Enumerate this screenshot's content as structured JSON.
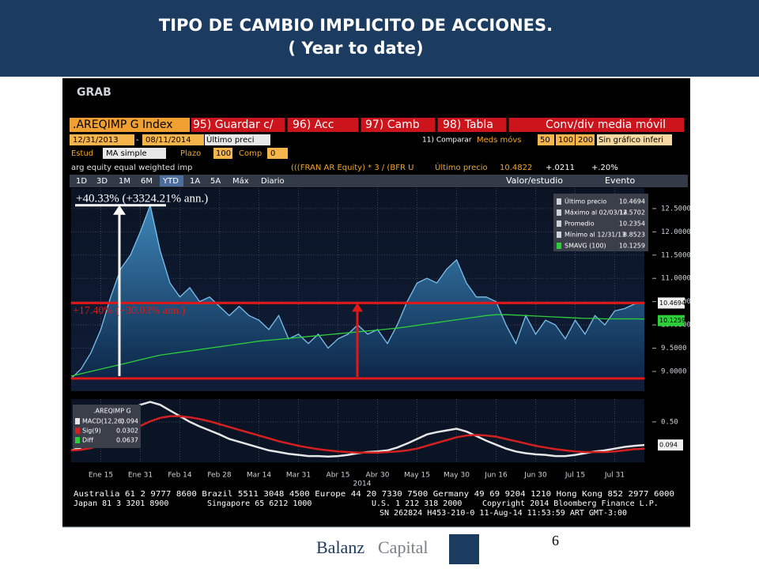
{
  "header": {
    "title_line1": "TIPO DE CAMBIO IMPLICITO DE ACCIONES.",
    "title_line2": "( Year to date)"
  },
  "terminal": {
    "screen": "GRAB",
    "ticker": ".AREQIMP G Index",
    "menu": [
      "95) Guardar c/",
      "96) Acc",
      "97) Camb",
      "98) Tabla",
      "Conv/div media móvil"
    ],
    "date_from": "12/31/2013",
    "date_sep": "-",
    "date_to": "08/11/2014",
    "price_field": "Último preci",
    "compare": "11) Comparar",
    "moving_avgs": "Meds móvs",
    "ma_periods": [
      "50",
      "100",
      "200"
    ],
    "lower_chart": "Sin gráfico inferi",
    "study_label": "Estud",
    "study": "MA simple",
    "period_label": "Plazo",
    "period": "100",
    "comp_label": "Comp",
    "comp": "0",
    "description": "arg equity equal weighted imp",
    "formula": "(((FRAN AR Equity) * 3 / (BFR U",
    "last_label": "Último precio",
    "last_value": "10.4822",
    "change": "+.0211",
    "change_pct": "+.20%",
    "period_buttons": [
      "1D",
      "3D",
      "1M",
      "6M",
      "YTD",
      "1A",
      "5A",
      "Máx",
      "Diario"
    ],
    "value_study": "Valor/estudio",
    "event": "Evento",
    "footer_lines": [
      "Australia 61 2 9777 8600 Brazil 5511 3048 4500 Europe 44 20 7330 7500 Germany 49 69 9204 1210 Hong Kong 852 2977 6000",
      "Japan 81 3 3201 8900",
      "Singapore 65 6212 1000",
      "U.S. 1 212 318 2000",
      "Copyright 2014 Bloomberg Finance L.P.",
      "SN 262824 H453-210-0 11-Aug-14 11:53:59 ART  GMT-3:00"
    ]
  },
  "chart_data": [
    {
      "type": "area",
      "series": [
        {
          "color": "#7cc0ec",
          "fill": true,
          "values": [
            8.85,
            9.05,
            9.4,
            9.9,
            10.6,
            11.2,
            11.5,
            12.0,
            12.57,
            11.6,
            10.9,
            10.6,
            10.8,
            10.5,
            10.6,
            10.4,
            10.2,
            10.4,
            10.2,
            10.1,
            9.9,
            10.2,
            9.7,
            9.8,
            9.6,
            9.8,
            9.5,
            9.7,
            9.8,
            10.0,
            9.8,
            9.9,
            9.6,
            10.0,
            10.5,
            10.9,
            11.0,
            10.9,
            11.2,
            11.4,
            10.9,
            10.6,
            10.6,
            10.5,
            10.0,
            9.6,
            10.2,
            9.8,
            10.1,
            10.0,
            9.7,
            10.1,
            9.8,
            10.2,
            10.0,
            10.3,
            10.35,
            10.45,
            10.47
          ]
        },
        {
          "color": "#2ccf3a",
          "fill": false,
          "values": [
            8.9,
            8.95,
            9.0,
            9.05,
            9.1,
            9.15,
            9.2,
            9.25,
            9.3,
            9.35,
            9.38,
            9.41,
            9.44,
            9.47,
            9.5,
            9.53,
            9.56,
            9.59,
            9.62,
            9.65,
            9.67,
            9.69,
            9.71,
            9.73,
            9.75,
            9.77,
            9.79,
            9.81,
            9.83,
            9.85,
            9.87,
            9.89,
            9.91,
            9.93,
            9.96,
            9.99,
            10.02,
            10.05,
            10.08,
            10.11,
            10.14,
            10.17,
            10.2,
            10.22,
            10.22,
            10.21,
            10.2,
            10.19,
            10.18,
            10.17,
            10.16,
            10.15,
            10.14,
            10.14,
            10.13,
            10.13,
            10.13,
            10.13,
            10.126
          ]
        }
      ],
      "ylim": [
        8.83,
        12.94
      ],
      "yticks": [
        {
          "value": 9,
          "label": "9.0000"
        },
        {
          "value": 9.5,
          "label": "9.5000"
        },
        {
          "value": 10,
          "label": "10.0000"
        },
        {
          "value": 10.5,
          "label": "10.5000"
        },
        {
          "value": 11,
          "label": "11.0000"
        },
        {
          "value": 11.5,
          "label": "11.5000"
        },
        {
          "value": 12,
          "label": "12.0000"
        },
        {
          "value": 12.5,
          "label": "12.5000"
        }
      ],
      "grid": true,
      "annotations": [
        "+40.33% (+3324.21% ann.)",
        "+17.40% (+30.03% ann.)"
      ],
      "legend": [
        {
          "label": "Último precio",
          "value": "10.4694"
        },
        {
          "label": "Máximo al 02/03/14",
          "value": "12.5702"
        },
        {
          "label": "Promedio",
          "value": "10.2354"
        },
        {
          "label": "Mínimo al 12/31/13",
          "value": "8.8523"
        },
        {
          "label": "SMAVG (100)",
          "value": "10.1259"
        }
      ]
    },
    {
      "type": "line",
      "title": ".AREQIMP G",
      "categories": [
        null,
        null,
        null,
        "Ene 15",
        null,
        null,
        null,
        "Ene 31",
        null,
        null,
        null,
        "Feb 14",
        null,
        null,
        null,
        "Feb 28",
        null,
        null,
        null,
        "Mar 14",
        null,
        null,
        null,
        "Mar 31",
        null,
        null,
        null,
        "Abr 15",
        null,
        null,
        null,
        "Abr 30",
        null,
        null,
        null,
        "May 15",
        null,
        null,
        null,
        "May 30",
        null,
        null,
        null,
        "Jun 16",
        null,
        null,
        null,
        "Jun 30",
        null,
        null,
        null,
        "Jul 15",
        null,
        null,
        null,
        "Jul 31",
        null,
        null,
        null
      ],
      "year": "2014",
      "series": [
        {
          "color": "#e6e6e6",
          "values": [
            0.0,
            0.05,
            0.15,
            0.3,
            0.45,
            0.6,
            0.72,
            0.8,
            0.85,
            0.8,
            0.7,
            0.6,
            0.5,
            0.42,
            0.35,
            0.28,
            0.2,
            0.15,
            0.1,
            0.05,
            0.0,
            -0.03,
            -0.06,
            -0.08,
            -0.1,
            -0.1,
            -0.11,
            -0.1,
            -0.08,
            -0.05,
            -0.03,
            -0.02,
            0.0,
            0.05,
            0.12,
            0.2,
            0.28,
            0.32,
            0.35,
            0.38,
            0.33,
            0.25,
            0.17,
            0.1,
            0.03,
            -0.02,
            -0.05,
            -0.07,
            -0.08,
            -0.1,
            -0.1,
            -0.08,
            -0.05,
            -0.02,
            0.0,
            0.03,
            0.06,
            0.08,
            0.094
          ]
        },
        {
          "color": "#d42020",
          "values": [
            0.0,
            0.01,
            0.04,
            0.09,
            0.16,
            0.25,
            0.34,
            0.43,
            0.51,
            0.57,
            0.6,
            0.6,
            0.58,
            0.55,
            0.51,
            0.46,
            0.41,
            0.36,
            0.31,
            0.26,
            0.21,
            0.16,
            0.12,
            0.08,
            0.05,
            0.02,
            0.0,
            -0.02,
            -0.03,
            -0.04,
            -0.04,
            -0.04,
            -0.03,
            -0.02,
            0.0,
            0.03,
            0.08,
            0.13,
            0.18,
            0.23,
            0.26,
            0.27,
            0.26,
            0.24,
            0.2,
            0.16,
            0.12,
            0.08,
            0.05,
            0.02,
            0.0,
            -0.02,
            -0.03,
            -0.03,
            -0.03,
            -0.02,
            0.0,
            0.02,
            0.03
          ]
        }
      ],
      "ylim": [
        -0.21,
        0.9
      ],
      "yticks": [
        {
          "value": 0.5,
          "label": "0.50"
        }
      ],
      "grid": true,
      "legend": [
        {
          "label": "MACD(12,26)",
          "value": "0.094"
        },
        {
          "label": "Sig(9)",
          "value": "0.0302"
        },
        {
          "label": "Diff",
          "value": "0.0637"
        }
      ]
    }
  ],
  "footer": {
    "brand_1": "Balanz",
    "brand_2": "Capital",
    "page": "6"
  }
}
